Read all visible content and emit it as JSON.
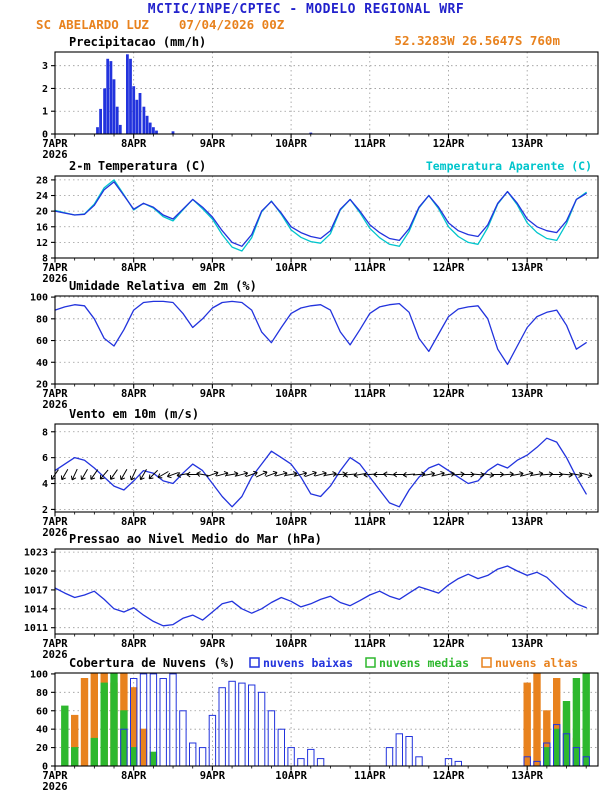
{
  "header": {
    "title": "MCTIC/INPE/CPTEC - MODELO REGIONAL WRF",
    "station": "SC ABELARDO LUZ",
    "run": "07/04/2026 00Z",
    "location": "52.3283W 26.5647S 760m"
  },
  "colors": {
    "title_blue": "#2222cc",
    "orange": "#e8821e",
    "line_blue": "#2233dd",
    "cyan": "#00c5cc",
    "green": "#2eb82e",
    "black": "#000000",
    "grid": "#999999"
  },
  "x_axis": {
    "tick_labels": [
      "7APR",
      "8APR",
      "9APR",
      "10APR",
      "11APR",
      "12APR",
      "13APR"
    ],
    "year": "2026",
    "xlim": [
      0,
      6.9
    ],
    "t_step_days": 0.125
  },
  "chart_data": [
    {
      "type": "bar",
      "title": "Precipitacao (mm/h)",
      "ylim": [
        0,
        3.6
      ],
      "yticks": [
        0,
        1,
        2,
        3
      ],
      "series": [
        {
          "name": "precipitacao",
          "color_key": "line_blue",
          "points": [
            [
              0.54,
              0.3
            ],
            [
              0.58,
              1.1
            ],
            [
              0.63,
              2.0
            ],
            [
              0.67,
              3.3
            ],
            [
              0.71,
              3.2
            ],
            [
              0.75,
              2.4
            ],
            [
              0.79,
              1.2
            ],
            [
              0.83,
              0.4
            ],
            [
              0.92,
              3.5
            ],
            [
              0.96,
              3.3
            ],
            [
              1.0,
              2.1
            ],
            [
              1.04,
              1.5
            ],
            [
              1.08,
              1.8
            ],
            [
              1.13,
              1.2
            ],
            [
              1.17,
              0.8
            ],
            [
              1.21,
              0.5
            ],
            [
              1.25,
              0.3
            ],
            [
              1.29,
              0.15
            ],
            [
              1.5,
              0.12
            ],
            [
              3.25,
              0.06
            ]
          ]
        }
      ]
    },
    {
      "type": "line",
      "title": "2-m Temperatura (C)",
      "legend": {
        "label": "Temperatura Aparente (C)",
        "color_key": "cyan"
      },
      "ylim": [
        8,
        29
      ],
      "yticks": [
        8,
        12,
        16,
        20,
        24,
        28
      ],
      "series": [
        {
          "name": "temperatura-aparente",
          "color_key": "cyan",
          "values": [
            20.2,
            19.6,
            19,
            19.3,
            21.8,
            26,
            28,
            24.2,
            20.3,
            22,
            20.8,
            18.6,
            17.5,
            20.3,
            23,
            20.6,
            18,
            14,
            10.8,
            9.8,
            13.2,
            19.8,
            22.6,
            19.2,
            15.2,
            13.3,
            12.2,
            11.8,
            14.2,
            20.3,
            23,
            19.6,
            15.6,
            13.2,
            11.5,
            11,
            14.8,
            20.8,
            24,
            20.6,
            16,
            13.5,
            12,
            11.5,
            15.8,
            21.8,
            25,
            21.6,
            17,
            14.5,
            13,
            12.5,
            16.8,
            23,
            24.8
          ]
        },
        {
          "name": "temperatura-2m",
          "color_key": "line_blue",
          "values": [
            20,
            19.5,
            19,
            19.2,
            21.5,
            25.5,
            27.5,
            24,
            20.5,
            22,
            21,
            19,
            18,
            20.5,
            23,
            21,
            18.5,
            15,
            12,
            11,
            14,
            20,
            22.5,
            19.5,
            16,
            14.5,
            13.5,
            13,
            15,
            20.5,
            23,
            20,
            16.5,
            14.5,
            13,
            12.5,
            15.5,
            21,
            24,
            21,
            17,
            15,
            14,
            13.5,
            16.5,
            22,
            25,
            22,
            18,
            16,
            15,
            14.5,
            17.5,
            23,
            24.5
          ]
        }
      ]
    },
    {
      "type": "line",
      "title": "Umidade Relativa em 2m (%)",
      "ylim": [
        20,
        101
      ],
      "yticks": [
        20,
        40,
        60,
        80,
        100
      ],
      "series": [
        {
          "name": "umidade-relativa",
          "color_key": "line_blue",
          "values": [
            88,
            91,
            93,
            92,
            80,
            62,
            55,
            70,
            88,
            95,
            96,
            96,
            95,
            85,
            72,
            80,
            90,
            95,
            96,
            95,
            88,
            68,
            58,
            72,
            85,
            90,
            92,
            93,
            88,
            68,
            56,
            70,
            85,
            91,
            93,
            94,
            86,
            62,
            50,
            66,
            82,
            89,
            91,
            92,
            80,
            52,
            38,
            55,
            72,
            82,
            86,
            88,
            74,
            52,
            58
          ]
        }
      ]
    },
    {
      "type": "line",
      "title": "Vento em 10m (m/s)",
      "ylim": [
        1.8,
        8.6
      ],
      "yticks": [
        2,
        4,
        6,
        8
      ],
      "series": [
        {
          "name": "vento-10m",
          "color_key": "line_blue",
          "values": [
            5,
            5.5,
            6,
            5.8,
            5.2,
            4.5,
            3.8,
            3.5,
            4.2,
            5,
            4.8,
            4.2,
            4,
            4.8,
            5.5,
            5,
            4,
            3,
            2.2,
            3,
            4.5,
            5.5,
            6.5,
            6,
            5.5,
            4.5,
            3.2,
            3,
            3.8,
            5,
            6,
            5.5,
            4.5,
            3.5,
            2.5,
            2.2,
            3.5,
            4.5,
            5.2,
            5.5,
            5,
            4.5,
            4,
            4.2,
            5,
            5.5,
            5.2,
            5.8,
            6.2,
            6.8,
            7.5,
            7.2,
            6,
            4.5,
            3.2
          ]
        }
      ],
      "barbs": {
        "y_value": 4.7,
        "angles_deg": [
          235,
          240,
          245,
          240,
          235,
          230,
          235,
          240,
          245,
          240,
          225,
          210,
          200,
          190,
          180,
          170,
          20,
          15,
          10,
          15,
          20,
          25,
          20,
          15,
          10,
          15,
          20,
          15,
          10,
          5,
          185,
          190,
          185,
          180,
          175,
          180,
          185,
          5,
          10,
          15,
          10,
          5,
          0,
          355,
          350,
          0,
          5,
          10,
          15,
          10,
          5,
          0,
          355,
          350,
          345
        ]
      }
    },
    {
      "type": "line",
      "title": "Pressao ao Nivel Medio do Mar (hPa)",
      "ylim": [
        1010,
        1023.5
      ],
      "yticks": [
        1011,
        1014,
        1017,
        1020,
        1023
      ],
      "series": [
        {
          "name": "pressao-nivel-mar",
          "color_key": "line_blue",
          "values": [
            1017.3,
            1016.5,
            1015.8,
            1016.2,
            1016.8,
            1015.5,
            1014,
            1013.5,
            1014.2,
            1013,
            1012,
            1011.3,
            1011.5,
            1012.5,
            1013,
            1012.2,
            1013.5,
            1014.8,
            1015.2,
            1014,
            1013.3,
            1014,
            1015,
            1015.8,
            1015.2,
            1014.3,
            1014.8,
            1015.5,
            1016,
            1015,
            1014.5,
            1015.3,
            1016.2,
            1016.8,
            1016,
            1015.5,
            1016.5,
            1017.5,
            1017,
            1016.5,
            1017.8,
            1018.8,
            1019.5,
            1018.8,
            1019.3,
            1020.3,
            1020.8,
            1020,
            1019.3,
            1019.8,
            1019,
            1017.5,
            1016,
            1014.8,
            1014.2
          ]
        }
      ]
    },
    {
      "type": "bar",
      "title": "Cobertura de Nuvens (%)",
      "ylim": [
        0,
        101
      ],
      "yticks": [
        0,
        20,
        40,
        60,
        80,
        100
      ],
      "legend": [
        {
          "label": "nuvens baixas",
          "color_key": "line_blue",
          "hollow": true
        },
        {
          "label": "nuvens medias",
          "color_key": "green",
          "hollow": true
        },
        {
          "label": "nuvens altas",
          "color_key": "orange",
          "hollow": true
        }
      ],
      "series": [
        {
          "name": "nuvens-altas",
          "color_key": "orange",
          "values": [
            0,
            0,
            55,
            95,
            100,
            100,
            90,
            100,
            85,
            40,
            10,
            0,
            0,
            0,
            0,
            0,
            0,
            0,
            0,
            0,
            0,
            0,
            0,
            0,
            0,
            0,
            0,
            0,
            0,
            0,
            0,
            0,
            0,
            0,
            0,
            0,
            0,
            0,
            0,
            0,
            0,
            0,
            0,
            0,
            0,
            0,
            0,
            0,
            90,
            100,
            60,
            95,
            60,
            30,
            10
          ]
        },
        {
          "name": "nuvens-medias",
          "color_key": "green",
          "values": [
            0,
            65,
            20,
            0,
            30,
            90,
            100,
            60,
            20,
            0,
            15,
            0,
            0,
            0,
            0,
            0,
            0,
            0,
            0,
            0,
            0,
            0,
            0,
            0,
            0,
            0,
            0,
            0,
            0,
            0,
            0,
            0,
            0,
            0,
            0,
            0,
            0,
            0,
            0,
            0,
            0,
            0,
            0,
            0,
            0,
            0,
            0,
            0,
            0,
            0,
            20,
            40,
            70,
            95,
            100
          ]
        },
        {
          "name": "nuvens-baixas",
          "color_key": "line_blue",
          "hollow": true,
          "values": [
            0,
            0,
            0,
            0,
            0,
            0,
            0,
            40,
            95,
            100,
            100,
            95,
            100,
            60,
            25,
            20,
            55,
            85,
            92,
            90,
            88,
            80,
            60,
            40,
            20,
            8,
            18,
            8,
            0,
            0,
            0,
            0,
            0,
            0,
            20,
            35,
            32,
            10,
            0,
            0,
            8,
            5,
            0,
            0,
            0,
            0,
            0,
            0,
            10,
            5,
            25,
            45,
            35,
            20,
            10
          ]
        }
      ]
    }
  ]
}
